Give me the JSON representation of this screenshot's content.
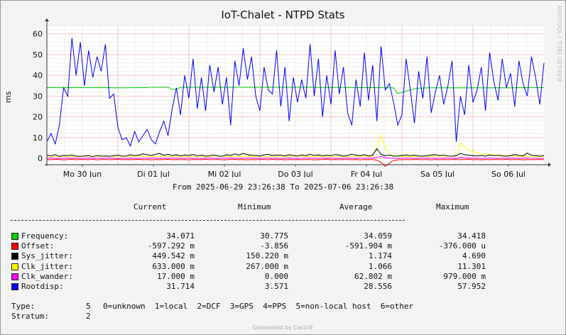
{
  "chart_data": {
    "type": "line",
    "title": "IoT-Chalet - NTPD Stats",
    "ylabel": "ms",
    "ylim": [
      -3,
      64
    ],
    "yticks": [
      0,
      10,
      20,
      30,
      40,
      50,
      60
    ],
    "x_ticks": [
      "Mo 30 Jun",
      "Di 01 Jul",
      "Mi 02 Jul",
      "Do 03 Jul",
      "Fr 04 Jul",
      "Sa 05 Jul",
      "So 06 Jul"
    ],
    "x_start": "2025-06-29 23:26:38",
    "x_end": "2025-07-06 23:26:38",
    "grid": true,
    "series": [
      {
        "name": "Frequency",
        "color": "#00cc00",
        "values": [
          34.1,
          34.1,
          34.1,
          34.1,
          34.1,
          34.1,
          34.1,
          34.1,
          34.1,
          34.1,
          34.1,
          34.1,
          34.1,
          34.1,
          34.1,
          34.1,
          34.0,
          34.0,
          34.0,
          34.0,
          34.1,
          34.1,
          34.1,
          34.1,
          34.2,
          34.3,
          34.3,
          34.3,
          34.3,
          34.3,
          33.2,
          33.5,
          34.2,
          34.3,
          34.3,
          34.3,
          34.3,
          34.3,
          34.3,
          34.3,
          34.3,
          34.3,
          34.3,
          34.3,
          34.3,
          34.3,
          34.3,
          34.3,
          34.3,
          34.3,
          34.3,
          34.3,
          34.3,
          34.3,
          34.3,
          34.3,
          34.3,
          34.3,
          34.3,
          34.3,
          34.3,
          34.3,
          34.3,
          34.3,
          34.3,
          34.2,
          34.2,
          34.2,
          34.2,
          34.2,
          34.2,
          34.2,
          34.2,
          34.2,
          34.1,
          34.1,
          34.1,
          34.1,
          34.1,
          34.1,
          34.1,
          34.0,
          34.0,
          34.0,
          31.2,
          31.8,
          32.5,
          33.0,
          33.5,
          33.8,
          33.9,
          34.0,
          34.0,
          34.0,
          34.0,
          34.0,
          34.0,
          34.0,
          34.0,
          34.0,
          34.0,
          34.0,
          34.0,
          34.0,
          34.0,
          34.0,
          34.0,
          34.0,
          34.0,
          34.0,
          34.0,
          34.0,
          34.0,
          34.1,
          34.1,
          34.1,
          34.1,
          34.1,
          34.1,
          34.1
        ]
      },
      {
        "name": "Offset",
        "color": "#ff0000",
        "values": [
          -0.5,
          -0.6,
          -0.4,
          -0.5,
          -0.7,
          -0.5,
          -0.4,
          -0.6,
          -0.5,
          -0.5,
          -0.6,
          -0.4,
          -0.7,
          -0.5,
          -0.5,
          -0.6,
          -0.5,
          -0.4,
          -0.6,
          -0.5,
          -0.6,
          -0.5,
          -0.4,
          -0.6,
          -0.5,
          -0.7,
          -0.5,
          -0.6,
          -0.5,
          -0.4,
          -0.6,
          -0.5,
          -0.6,
          -0.5,
          -0.7,
          -0.5,
          -0.5,
          -0.6,
          -0.4,
          -0.6,
          -0.5,
          -0.5,
          -0.7,
          -0.6,
          -0.5,
          -0.4,
          -0.6,
          -0.5,
          -0.7,
          -0.5,
          -0.6,
          -0.5,
          -0.5,
          -0.6,
          -0.4,
          -0.6,
          -0.5,
          -0.7,
          -0.5,
          -0.6,
          -0.5,
          -0.6,
          -0.5,
          -0.5,
          -0.7,
          -0.6,
          -0.5,
          -0.4,
          -0.6,
          -0.5,
          -0.6,
          -0.5,
          -0.5,
          -0.6,
          -0.5,
          -0.7,
          -0.5,
          -0.6,
          -0.5,
          -0.9,
          -1.8,
          -3.9,
          -2.2,
          -1.0,
          -0.7,
          -0.6,
          -0.5,
          -0.6,
          -0.5,
          -0.5,
          -0.6,
          -0.5,
          -0.7,
          -0.5,
          -0.6,
          -0.5,
          -0.6,
          -0.5,
          -0.5,
          -0.6,
          -0.5,
          -0.4,
          -0.6,
          -0.5,
          -0.7,
          -0.5,
          -0.6,
          -0.5,
          -0.5,
          -0.6,
          -0.4,
          -0.6,
          -0.5,
          -0.5,
          -0.7,
          -0.5,
          -0.6,
          -0.5,
          -0.5,
          -0.6
        ]
      },
      {
        "name": "Clk_jitter",
        "color": "#ffff00",
        "values": [
          1.0,
          1.1,
          0.9,
          1.0,
          1.2,
          0.9,
          1.0,
          1.1,
          0.9,
          1.0,
          1.2,
          1.0,
          0.9,
          1.1,
          1.0,
          1.0,
          1.2,
          0.9,
          1.0,
          1.1,
          1.0,
          0.9,
          1.2,
          1.0,
          1.1,
          0.9,
          1.0,
          1.0,
          1.2,
          0.9,
          1.1,
          1.0,
          1.0,
          1.2,
          0.9,
          1.0,
          1.1,
          1.0,
          0.9,
          1.0,
          1.2,
          1.0,
          1.1,
          0.9,
          1.0,
          1.0,
          1.1,
          0.9,
          1.2,
          1.0,
          1.0,
          1.1,
          0.9,
          1.0,
          1.2,
          1.0,
          1.0,
          0.9,
          1.1,
          1.0,
          1.2,
          1.0,
          0.9,
          1.0,
          1.1,
          1.0,
          1.0,
          1.2,
          0.9,
          1.0,
          1.1,
          1.0,
          0.9,
          1.0,
          1.2,
          1.0,
          1.1,
          1.0,
          0.9,
          6.0,
          11.3,
          5.0,
          2.5,
          1.5,
          1.0,
          1.1,
          0.9,
          1.0,
          1.2,
          1.0,
          1.0,
          1.1,
          0.9,
          1.0,
          1.0,
          1.2,
          1.0,
          1.1,
          1.0,
          7.5,
          5.5,
          4.0,
          3.2,
          2.8,
          2.2,
          2.0,
          1.8,
          1.6,
          1.5,
          1.4,
          1.3,
          1.2,
          1.1,
          1.0,
          1.0,
          1.1,
          0.9,
          1.0,
          1.0,
          1.0
        ]
      },
      {
        "name": "Sys_jitter",
        "color": "#000000",
        "values": [
          1.5,
          1.2,
          1.8,
          1.0,
          1.4,
          1.3,
          1.6,
          1.1,
          1.0,
          1.2,
          1.3,
          0.9,
          1.4,
          1.1,
          1.2,
          1.0,
          1.3,
          1.5,
          1.1,
          1.2,
          1.8,
          1.3,
          1.6,
          2.2,
          1.8,
          1.4,
          2.0,
          2.4,
          1.5,
          2.0,
          1.3,
          1.8,
          1.2,
          1.6,
          1.4,
          1.9,
          1.2,
          1.5,
          1.1,
          1.3,
          1.6,
          1.2,
          1.0,
          1.8,
          1.4,
          2.2,
          1.6,
          2.4,
          1.9,
          1.5,
          1.4,
          1.1,
          1.7,
          2.0,
          1.3,
          1.6,
          1.5,
          1.2,
          1.8,
          1.4,
          1.1,
          1.6,
          1.3,
          2.0,
          1.4,
          1.7,
          1.2,
          1.5,
          1.3,
          1.9,
          1.6,
          1.1,
          1.4,
          2.1,
          1.5,
          1.3,
          1.8,
          1.2,
          1.6,
          4.7,
          2.0,
          1.3,
          1.5,
          1.1,
          1.2,
          1.4,
          1.6,
          1.3,
          1.5,
          1.2,
          1.1,
          1.3,
          1.6,
          1.8,
          1.4,
          1.5,
          1.2,
          1.1,
          1.3,
          2.4,
          1.8,
          1.5,
          1.3,
          1.2,
          1.4,
          1.1,
          1.6,
          1.3,
          1.5,
          1.2,
          1.1,
          1.3,
          1.9,
          1.4,
          1.2,
          2.6,
          1.5,
          1.3,
          1.1,
          1.4
        ]
      },
      {
        "name": "Clk_wander",
        "color": "#ff00ff",
        "values": [
          0.1,
          0.2,
          0.1,
          0.0,
          0.1,
          0.2,
          0.1,
          0.1,
          0.0,
          0.1,
          0.2,
          0.1,
          0.1,
          0.0,
          0.1,
          0.2,
          0.1,
          0.0,
          0.1,
          0.1,
          0.2,
          0.1,
          0.0,
          0.1,
          0.1,
          0.2,
          0.1,
          0.0,
          0.1,
          0.1,
          0.2,
          0.1,
          0.0,
          0.1,
          0.2,
          0.1,
          0.1,
          0.0,
          0.1,
          0.2,
          0.1,
          0.0,
          0.1,
          0.1,
          0.2,
          0.1,
          0.0,
          0.1,
          0.1,
          0.2,
          0.1,
          0.0,
          0.1,
          0.2,
          0.1,
          0.1,
          0.0,
          0.1,
          0.2,
          0.1,
          0.0,
          0.1,
          0.1,
          0.2,
          0.1,
          0.0,
          0.1,
          0.2,
          0.1,
          0.1,
          0.0,
          0.1,
          0.2,
          0.1,
          0.0,
          0.1,
          0.1,
          0.2,
          0.1,
          0.5,
          1.0,
          0.4,
          0.1,
          0.1,
          0.0,
          0.1,
          0.2,
          0.1,
          0.0,
          0.1,
          0.1,
          0.2,
          0.1,
          0.0,
          0.1,
          0.2,
          0.1,
          0.1,
          0.0,
          0.6,
          0.3,
          0.2,
          0.1,
          0.1,
          0.0,
          0.1,
          0.2,
          0.1,
          0.0,
          0.1,
          0.1,
          0.2,
          0.1,
          0.0,
          0.1,
          0.2,
          0.1,
          0.1,
          0.0,
          0.1
        ]
      },
      {
        "name": "Rootdisp",
        "color": "#0000ff",
        "values": [
          8,
          12,
          7,
          16,
          34,
          30,
          58,
          40,
          56,
          35,
          52,
          39,
          49,
          42,
          55,
          29,
          31,
          15,
          9,
          10,
          6,
          13,
          8,
          11,
          14,
          9,
          7,
          13,
          18,
          11,
          24,
          34,
          21,
          40,
          29,
          48,
          24,
          39,
          23,
          45,
          32,
          44,
          26,
          39,
          16,
          47,
          35,
          53,
          38,
          49,
          30,
          23,
          44,
          33,
          31,
          52,
          25,
          44,
          18,
          39,
          27,
          38,
          29,
          55,
          30,
          48,
          20,
          40,
          26,
          52,
          31,
          44,
          22,
          16,
          38,
          25,
          51,
          28,
          45,
          18,
          54,
          33,
          36,
          27,
          16,
          21,
          48,
          33,
          17,
          42,
          29,
          49,
          22,
          32,
          40,
          26,
          35,
          47,
          8,
          30,
          21,
          45,
          27,
          33,
          44,
          23,
          51,
          37,
          28,
          48,
          34,
          41,
          25,
          47,
          36,
          30,
          49,
          39,
          26,
          46
        ]
      }
    ]
  },
  "legend_headers": {
    "current": "Current",
    "minimum": "Minimum",
    "average": "Average",
    "maximum": "Maximum"
  },
  "legend_rows": [
    {
      "label": "Frequency:",
      "color": "#00cc00",
      "current": "34.071",
      "minimum": "30.775",
      "average": "34.059",
      "maximum": "34.418"
    },
    {
      "label": "Offset:",
      "color": "#ff0000",
      "current": "-597.292 m",
      "minimum": "-3.856",
      "average": "-591.904 m",
      "maximum": "-376.000 u"
    },
    {
      "label": "Sys_jitter:",
      "color": "#000000",
      "current": "449.542 m",
      "minimum": "150.220 m",
      "average": "1.174",
      "maximum": "4.690"
    },
    {
      "label": "Clk_jitter:",
      "color": "#ffff00",
      "current": "633.000 m",
      "minimum": "267.000 m",
      "average": "1.066",
      "maximum": "11.301"
    },
    {
      "label": "Clk_wander:",
      "color": "#ff00ff",
      "current": "17.000 m",
      "minimum": "0.000",
      "average": "62.802 m",
      "maximum": "979.000 m"
    },
    {
      "label": "Rootdisp:",
      "color": "#0000ff",
      "current": "31.714",
      "minimum": "3.571",
      "average": "28.556",
      "maximum": "57.952"
    }
  ],
  "range_text": "From 2025-06-29 23:26:38 To 2025-07-06 23:26:38",
  "type_line": {
    "label": "Type:",
    "value": "5",
    "legend": "0=unknown  1=local  2=DCF  3=GPS  4=PPS  5=non-local host  6=other"
  },
  "stratum_line": {
    "label": "Stratum:",
    "value": "2"
  },
  "watermark": "RRDTOOL / TOBI OETIKER",
  "footer": "Generated by Cacti®"
}
